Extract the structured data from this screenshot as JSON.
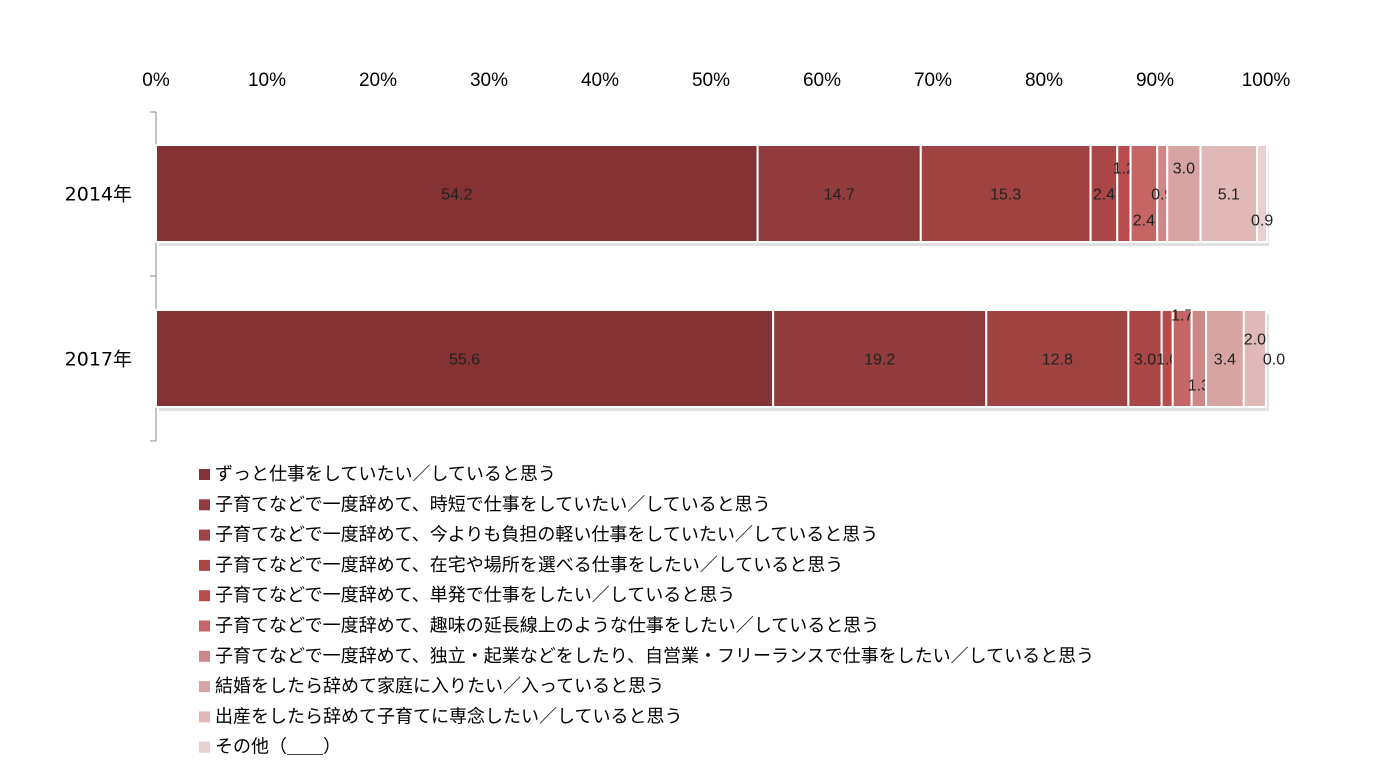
{
  "chart_data": {
    "type": "bar",
    "orientation": "horizontal",
    "stacked": "percent",
    "categories": [
      "2014年",
      "2017年"
    ],
    "x_ticks": [
      "0%",
      "10%",
      "20%",
      "30%",
      "40%",
      "50%",
      "60%",
      "70%",
      "80%",
      "90%",
      "100%"
    ],
    "xlim": [
      0,
      100
    ],
    "x_axis_position": "top",
    "grid": false,
    "legend_placement": "bottom",
    "series": [
      {
        "name": "ずっと仕事をしていたい／していると思う",
        "values": [
          54.2,
          55.6
        ],
        "color": "#843234"
      },
      {
        "name": "子育てなどで一度辞めて、時短で仕事をしていたい／していると思う",
        "values": [
          14.7,
          19.2
        ],
        "color": "#923b3c"
      },
      {
        "name": "子育てなどで一度辞めて、今よりも負担の軽い仕事をしていたい／していると思う",
        "values": [
          15.3,
          12.8
        ],
        "color": "#9f4242"
      },
      {
        "name": "子育てなどで一度辞めて、在宅や場所を選べる仕事をしたい／していると思う",
        "values": [
          2.4,
          3.0
        ],
        "color": "#ab4646"
      },
      {
        "name": "子育てなどで一度辞めて、単発で仕事をしたい／していると思う",
        "values": [
          1.2,
          1.0
        ],
        "color": "#b84c4c"
      },
      {
        "name": "子育てなどで一度辞めて、趣味の延長線上のような仕事をしたい／していると思う",
        "values": [
          2.4,
          1.7
        ],
        "color": "#c56565"
      },
      {
        "name": "子育てなどで一度辞めて、独立・起業などをしたり、自営業・フリーランスで仕事をしたい／していると思う",
        "values": [
          0.9,
          1.3
        ],
        "color": "#cd8787"
      },
      {
        "name": "結婚をしたら辞めて家庭に入りたい／入っていると思う",
        "values": [
          3.0,
          3.4
        ],
        "color": "#d7a3a3"
      },
      {
        "name": "出産をしたら辞めて子育てに専念したい／していると思う",
        "values": [
          5.1,
          2.0
        ],
        "color": "#e0b8b8"
      },
      {
        "name": "その他（＿＿）",
        "values": [
          0.9,
          0.0
        ],
        "color": "#e9cfd0"
      }
    ]
  }
}
